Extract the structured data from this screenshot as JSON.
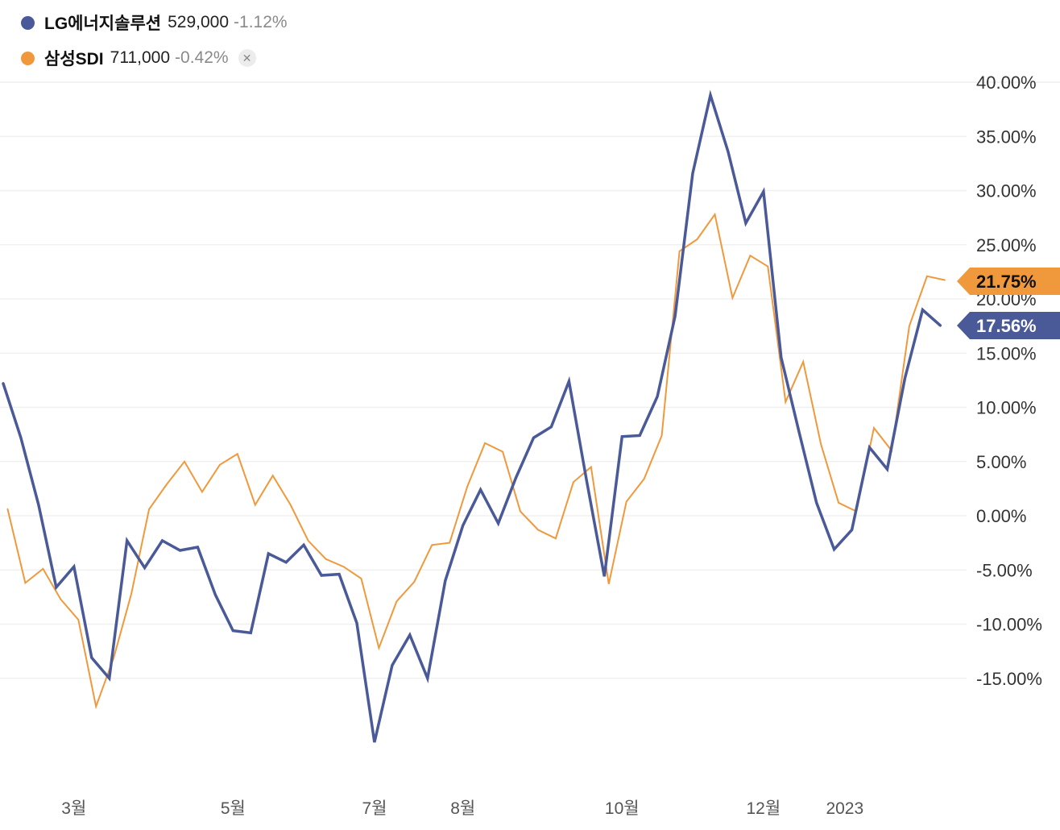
{
  "legend": [
    {
      "name": "LG에너지솔루션",
      "price": "529,000",
      "change": "-1.12%",
      "color": "#4a5a99"
    },
    {
      "name": "삼성SDI",
      "price": "711,000",
      "change": "-0.42%",
      "color": "#f0993c",
      "close_icon": "close-icon"
    }
  ],
  "chart_data": {
    "type": "line",
    "y_tick_labels": [
      "40.00%",
      "35.00%",
      "30.00%",
      "25.00%",
      "20.00%",
      "15.00%",
      "10.00%",
      "5.00%",
      "0.00%",
      "-5.00%",
      "-10.00%",
      "-15.00%"
    ],
    "y_ticks": [
      40,
      35,
      30,
      25,
      20,
      15,
      10,
      5,
      0,
      -5,
      -10,
      -15
    ],
    "ylim": [
      -23.5,
      41
    ],
    "y_axis_position": "right",
    "grid": true,
    "x_tick_labels": [
      {
        "label": "3월",
        "index": 4
      },
      {
        "label": "5월",
        "index": 13
      },
      {
        "label": "7월",
        "index": 21
      },
      {
        "label": "8월",
        "index": 26
      },
      {
        "label": "10월",
        "index": 35
      },
      {
        "label": "12월",
        "index": 43
      },
      {
        "label": "2023",
        "index": 47.6
      }
    ],
    "series": [
      {
        "name": "LG에너지솔루션",
        "color": "#4a5a99",
        "last_label": "17.56%",
        "values": [
          12.2,
          7.2,
          1.0,
          -6.6,
          -4.7,
          -13.1,
          -15.0,
          -2.3,
          -4.8,
          -2.3,
          -3.2,
          -2.9,
          -7.3,
          -10.6,
          -10.8,
          -3.5,
          -4.3,
          -2.7,
          -5.5,
          -5.4,
          -9.9,
          -20.9,
          -13.8,
          -11.0,
          -15.0,
          -6.0,
          -0.9,
          2.4,
          -0.7,
          3.5,
          7.2,
          8.2,
          12.4,
          3.2,
          -5.6,
          7.3,
          7.4,
          11.0,
          18.4,
          31.6,
          38.8,
          33.6,
          27.0,
          29.9,
          14.6,
          7.8,
          1.2,
          -3.1,
          -1.3,
          6.3,
          4.3,
          12.7,
          19.0,
          17.56
        ],
        "x_offset": 0
      },
      {
        "name": "삼성SDI",
        "color": "#f0993c",
        "last_label": "21.75%",
        "values": [
          0.6,
          -6.2,
          -4.9,
          -7.7,
          -9.6,
          -17.6,
          -13.1,
          -7.2,
          0.6,
          2.9,
          5.0,
          2.2,
          4.7,
          5.7,
          1.0,
          3.7,
          1.0,
          -2.3,
          -4.0,
          -4.7,
          -5.8,
          -12.2,
          -7.9,
          -6.1,
          -2.7,
          -2.5,
          2.7,
          6.7,
          5.9,
          0.4,
          -1.3,
          -2.1,
          3.1,
          4.5,
          -6.3,
          1.3,
          3.4,
          7.4,
          24.4,
          25.5,
          27.8,
          20.1,
          24.0,
          23.0,
          10.5,
          14.2,
          6.6,
          1.2,
          0.4,
          8.1,
          6.0,
          17.5,
          22.1,
          21.75
        ],
        "x_offset": 0.25
      }
    ]
  }
}
